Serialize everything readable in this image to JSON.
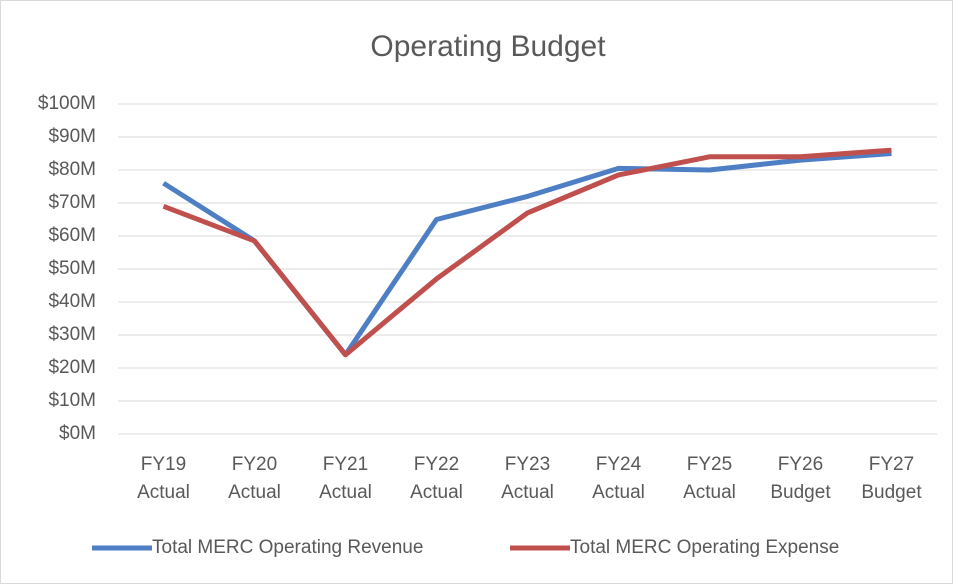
{
  "chart_data": {
    "type": "line",
    "title": "Operating Budget",
    "categories": [
      [
        "FY19",
        "Actual"
      ],
      [
        "FY20",
        "Actual"
      ],
      [
        "FY21",
        "Actual"
      ],
      [
        "FY22",
        "Actual"
      ],
      [
        "FY23",
        "Actual"
      ],
      [
        "FY24",
        "Actual"
      ],
      [
        "FY25",
        "Actual"
      ],
      [
        "FY26",
        "Budget"
      ],
      [
        "FY27",
        "Budget"
      ]
    ],
    "series": [
      {
        "name": "Total MERC Operating Revenue",
        "color": "#4e7fc4",
        "values": [
          76000000,
          58500000,
          24000000,
          65000000,
          72000000,
          80500000,
          80000000,
          83000000,
          85000000
        ]
      },
      {
        "name": "Total MERC Operating Expense",
        "color": "#c0504d",
        "values": [
          69000000,
          58500000,
          24000000,
          47000000,
          67000000,
          78500000,
          84000000,
          84000000,
          86000000
        ]
      }
    ],
    "ylim": [
      0,
      100000000
    ],
    "yticks": [
      {
        "value": 0,
        "label": "$0M"
      },
      {
        "value": 10000000,
        "label": "$10M"
      },
      {
        "value": 20000000,
        "label": "$20M"
      },
      {
        "value": 30000000,
        "label": "$30M"
      },
      {
        "value": 40000000,
        "label": "$40M"
      },
      {
        "value": 50000000,
        "label": "$50M"
      },
      {
        "value": 60000000,
        "label": "$60M"
      },
      {
        "value": 70000000,
        "label": "$70M"
      },
      {
        "value": 80000000,
        "label": "$80M"
      },
      {
        "value": 90000000,
        "label": "$90M"
      },
      {
        "value": 100000000,
        "label": "$100M"
      }
    ],
    "grid": true,
    "legend": "bottom"
  }
}
